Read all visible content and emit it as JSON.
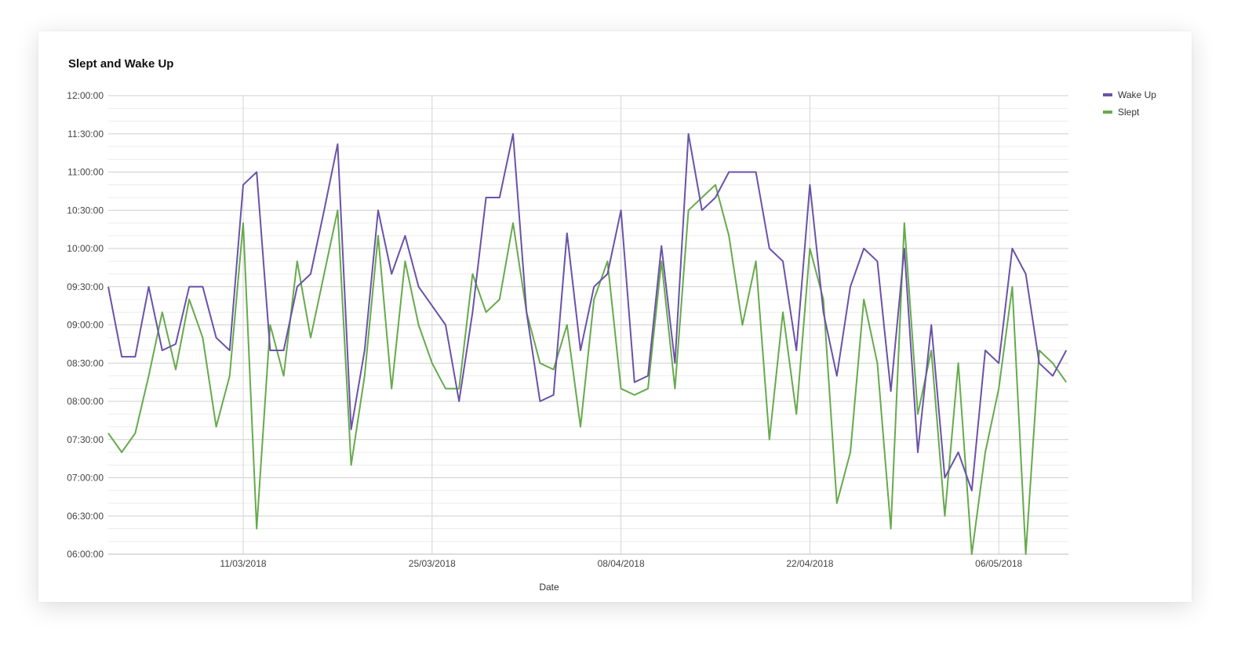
{
  "chart_data": {
    "type": "line",
    "title": "Slept and Wake Up",
    "xlabel": "Date",
    "ylabel": "",
    "x_start": "2018-03-01",
    "x_step_days": 1,
    "x_tick_labels": [
      "11/03/2018",
      "25/03/2018",
      "08/04/2018",
      "22/04/2018",
      "06/05/2018"
    ],
    "y_tick_labels": [
      "06:00:00",
      "06:30:00",
      "07:00:00",
      "07:30:00",
      "08:00:00",
      "08:30:00",
      "09:00:00",
      "09:30:00",
      "10:00:00",
      "10:30:00",
      "11:00:00",
      "11:30:00",
      "12:00:00"
    ],
    "ylim": [
      "06:00:00",
      "12:00:00"
    ],
    "grid": true,
    "legend_position": "top-right",
    "series": [
      {
        "name": "Wake Up",
        "color": "#6a52a8",
        "values": [
          "09:30",
          "08:35",
          "08:35",
          "09:30",
          "08:40",
          "08:45",
          "09:30",
          "09:30",
          "08:50",
          "08:40",
          "10:50",
          "11:00",
          "08:40",
          "08:40",
          "09:30",
          "09:40",
          "10:30",
          "11:22",
          "07:38",
          "08:40",
          "10:30",
          "09:40",
          "10:10",
          "09:30",
          "09:15",
          "09:00",
          "08:00",
          "09:10",
          "10:40",
          "10:40",
          "11:30",
          "09:10",
          "08:00",
          "08:05",
          "10:12",
          "08:40",
          "09:30",
          "09:40",
          "10:30",
          "08:15",
          "08:20",
          "10:02",
          "08:30",
          "11:30",
          "10:30",
          "10:40",
          "11:00",
          "11:00",
          "11:00",
          "10:00",
          "09:50",
          "08:40",
          "10:50",
          "09:10",
          "08:20",
          "09:30",
          "10:00",
          "09:50",
          "08:08",
          "10:00",
          "07:20",
          "09:00",
          "07:00",
          "07:20",
          "06:50",
          "08:40",
          "08:30",
          "10:00",
          "09:40",
          "08:30",
          "08:20",
          "08:40"
        ]
      },
      {
        "name": "Slept",
        "color": "#66aa4c",
        "values": [
          "07:35",
          "07:20",
          "07:35",
          "08:20",
          "09:10",
          "08:25",
          "09:20",
          "08:50",
          "07:40",
          "08:20",
          "10:20",
          "06:20",
          "09:00",
          "08:20",
          "09:50",
          "08:50",
          "09:40",
          "10:30",
          "07:10",
          "08:20",
          "10:10",
          "08:10",
          "09:50",
          "09:00",
          "08:30",
          "08:10",
          "08:10",
          "09:40",
          "09:10",
          "09:20",
          "10:20",
          "09:10",
          "08:30",
          "08:25",
          "09:00",
          "07:40",
          "09:20",
          "09:50",
          "08:10",
          "08:05",
          "08:10",
          "09:50",
          "08:10",
          "10:30",
          "10:40",
          "10:50",
          "10:10",
          "09:00",
          "09:50",
          "07:30",
          "09:10",
          "07:50",
          "10:00",
          "09:20",
          "06:40",
          "07:20",
          "09:20",
          "08:30",
          "06:20",
          "10:20",
          "07:50",
          "08:40",
          "06:30",
          "08:30",
          "06:00",
          "07:20",
          "08:10",
          "09:30",
          "06:00",
          "08:40",
          "08:30",
          "08:15"
        ]
      }
    ]
  }
}
